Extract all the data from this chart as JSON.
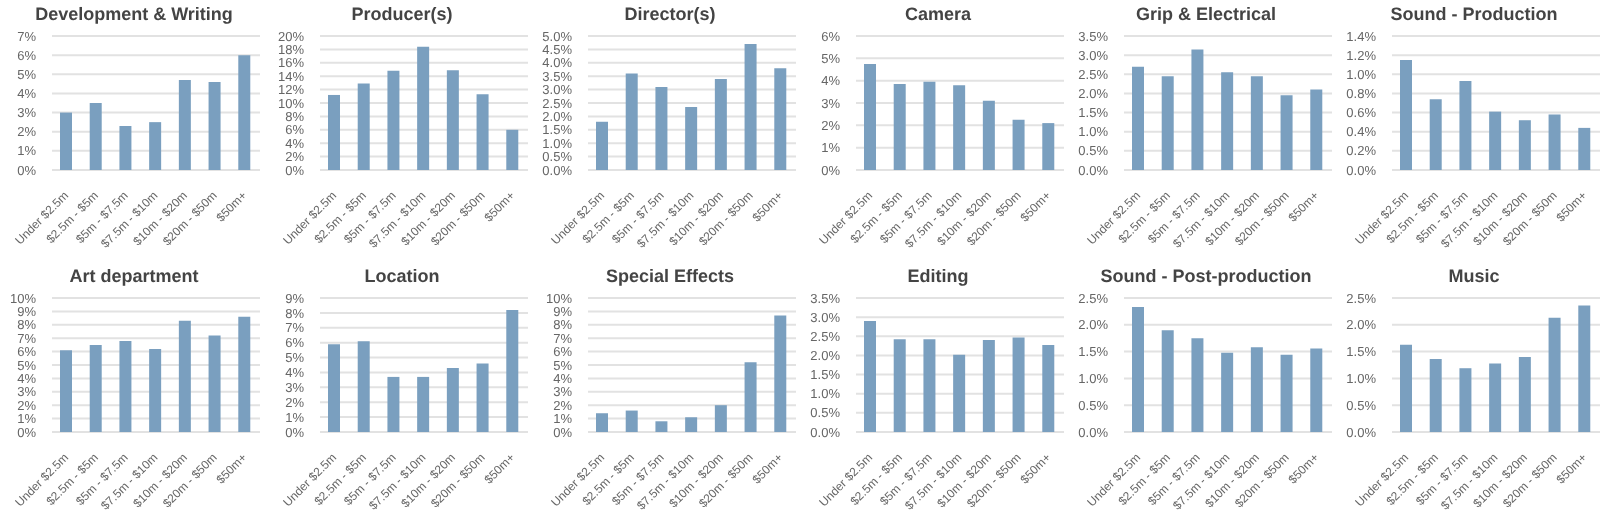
{
  "chart_data": [
    {
      "type": "bar",
      "title": "Development & Writing",
      "categories": [
        "Under $2.5m",
        "$2.5m - $5m",
        "$5m - $7.5m",
        "$7.5m - $10m",
        "$10m - $20m",
        "$20m - $50m",
        "$50m+"
      ],
      "values": [
        3.0,
        3.5,
        2.3,
        2.5,
        4.7,
        4.6,
        6.0
      ],
      "color": "#7a9fbf",
      "ylim": [
        0,
        7
      ],
      "yticks": [
        {
          "value": 0,
          "label": "0%"
        },
        {
          "value": 1,
          "label": "1%"
        },
        {
          "value": 2,
          "label": "2%"
        },
        {
          "value": 3,
          "label": "3%"
        },
        {
          "value": 4,
          "label": "4%"
        },
        {
          "value": 5,
          "label": "5%"
        },
        {
          "value": 6,
          "label": "6%"
        },
        {
          "value": 7,
          "label": "7%"
        }
      ],
      "grid": "y"
    },
    {
      "type": "bar",
      "title": "Producer(s)",
      "categories": [
        "Under $2.5m",
        "$2.5m - $5m",
        "$5m - $7.5m",
        "$7.5m - $10m",
        "$10m - $20m",
        "$20m - $50m",
        "$50m+"
      ],
      "values": [
        11.2,
        12.9,
        14.8,
        18.4,
        14.9,
        11.3,
        6.0
      ],
      "color": "#7a9fbf",
      "ylim": [
        0,
        20
      ],
      "yticks": [
        {
          "value": 0,
          "label": "0%"
        },
        {
          "value": 2,
          "label": "2%"
        },
        {
          "value": 4,
          "label": "4%"
        },
        {
          "value": 6,
          "label": "6%"
        },
        {
          "value": 8,
          "label": "8%"
        },
        {
          "value": 10,
          "label": "10%"
        },
        {
          "value": 12,
          "label": "12%"
        },
        {
          "value": 14,
          "label": "14%"
        },
        {
          "value": 16,
          "label": "16%"
        },
        {
          "value": 18,
          "label": "18%"
        },
        {
          "value": 20,
          "label": "20%"
        }
      ],
      "grid": "y"
    },
    {
      "type": "bar",
      "title": "Director(s)",
      "categories": [
        "Under $2.5m",
        "$2.5m - $5m",
        "$5m - $7.5m",
        "$7.5m - $10m",
        "$10m - $20m",
        "$20m - $50m",
        "$50m+"
      ],
      "values": [
        1.8,
        3.6,
        3.1,
        2.35,
        3.4,
        4.7,
        3.8
      ],
      "color": "#7a9fbf",
      "ylim": [
        0,
        5
      ],
      "yticks": [
        {
          "value": 0,
          "label": "0.0%"
        },
        {
          "value": 0.5,
          "label": "0.5%"
        },
        {
          "value": 1,
          "label": "1.0%"
        },
        {
          "value": 1.5,
          "label": "1.5%"
        },
        {
          "value": 2,
          "label": "2.0%"
        },
        {
          "value": 2.5,
          "label": "2.5%"
        },
        {
          "value": 3,
          "label": "3.0%"
        },
        {
          "value": 3.5,
          "label": "3.5%"
        },
        {
          "value": 4,
          "label": "4.0%"
        },
        {
          "value": 4.5,
          "label": "4.5%"
        },
        {
          "value": 5,
          "label": "5.0%"
        }
      ],
      "grid": "y"
    },
    {
      "type": "bar",
      "title": "Camera",
      "categories": [
        "Under $2.5m",
        "$2.5m - $5m",
        "$5m - $7.5m",
        "$7.5m - $10m",
        "$10m - $20m",
        "$20m - $50m",
        "$50m+"
      ],
      "values": [
        4.75,
        3.85,
        3.95,
        3.8,
        3.1,
        2.25,
        2.1
      ],
      "color": "#7a9fbf",
      "ylim": [
        0,
        6
      ],
      "yticks": [
        {
          "value": 0,
          "label": "0%"
        },
        {
          "value": 1,
          "label": "1%"
        },
        {
          "value": 2,
          "label": "2%"
        },
        {
          "value": 3,
          "label": "3%"
        },
        {
          "value": 4,
          "label": "4%"
        },
        {
          "value": 5,
          "label": "5%"
        },
        {
          "value": 6,
          "label": "6%"
        }
      ],
      "grid": "y"
    },
    {
      "type": "bar",
      "title": "Grip & Electrical",
      "categories": [
        "Under $2.5m",
        "$2.5m - $5m",
        "$5m - $7.5m",
        "$7.5m - $10m",
        "$10m - $20m",
        "$20m - $50m",
        "$50m+"
      ],
      "values": [
        2.7,
        2.45,
        3.15,
        2.55,
        2.45,
        1.95,
        2.1
      ],
      "color": "#7a9fbf",
      "ylim": [
        0,
        3.5
      ],
      "yticks": [
        {
          "value": 0,
          "label": "0.0%"
        },
        {
          "value": 0.5,
          "label": "0.5%"
        },
        {
          "value": 1,
          "label": "1.0%"
        },
        {
          "value": 1.5,
          "label": "1.5%"
        },
        {
          "value": 2,
          "label": "2.0%"
        },
        {
          "value": 2.5,
          "label": "2.5%"
        },
        {
          "value": 3,
          "label": "3.0%"
        },
        {
          "value": 3.5,
          "label": "3.5%"
        }
      ],
      "grid": "y"
    },
    {
      "type": "bar",
      "title": "Sound - Production",
      "categories": [
        "Under $2.5m",
        "$2.5m - $5m",
        "$5m - $7.5m",
        "$7.5m - $10m",
        "$10m - $20m",
        "$20m - $50m",
        "$50m+"
      ],
      "values": [
        1.15,
        0.74,
        0.93,
        0.61,
        0.52,
        0.58,
        0.44
      ],
      "color": "#7a9fbf",
      "ylim": [
        0,
        1.4
      ],
      "yticks": [
        {
          "value": 0,
          "label": "0.0%"
        },
        {
          "value": 0.2,
          "label": "0.2%"
        },
        {
          "value": 0.4,
          "label": "0.4%"
        },
        {
          "value": 0.6,
          "label": "0.6%"
        },
        {
          "value": 0.8,
          "label": "0.8%"
        },
        {
          "value": 1,
          "label": "1.0%"
        },
        {
          "value": 1.2,
          "label": "1.2%"
        },
        {
          "value": 1.4,
          "label": "1.4%"
        }
      ],
      "grid": "y"
    },
    {
      "type": "bar",
      "title": "Art department",
      "categories": [
        "Under $2.5m",
        "$2.5m - $5m",
        "$5m - $7.5m",
        "$7.5m - $10m",
        "$10m - $20m",
        "$20m - $50m",
        "$50m+"
      ],
      "values": [
        6.1,
        6.5,
        6.8,
        6.2,
        8.3,
        7.2,
        8.6
      ],
      "color": "#7a9fbf",
      "ylim": [
        0,
        10
      ],
      "yticks": [
        {
          "value": 0,
          "label": "0%"
        },
        {
          "value": 1,
          "label": "1%"
        },
        {
          "value": 2,
          "label": "2%"
        },
        {
          "value": 3,
          "label": "3%"
        },
        {
          "value": 4,
          "label": "4%"
        },
        {
          "value": 5,
          "label": "5%"
        },
        {
          "value": 6,
          "label": "6%"
        },
        {
          "value": 7,
          "label": "7%"
        },
        {
          "value": 8,
          "label": "8%"
        },
        {
          "value": 9,
          "label": "9%"
        },
        {
          "value": 10,
          "label": "10%"
        }
      ],
      "grid": "y"
    },
    {
      "type": "bar",
      "title": "Location",
      "categories": [
        "Under $2.5m",
        "$2.5m - $5m",
        "$5m - $7.5m",
        "$7.5m - $10m",
        "$10m - $20m",
        "$20m - $50m",
        "$50m+"
      ],
      "values": [
        5.9,
        6.1,
        3.7,
        3.7,
        4.3,
        4.6,
        8.2
      ],
      "color": "#7a9fbf",
      "ylim": [
        0,
        9
      ],
      "yticks": [
        {
          "value": 0,
          "label": "0%"
        },
        {
          "value": 1,
          "label": "1%"
        },
        {
          "value": 2,
          "label": "2%"
        },
        {
          "value": 3,
          "label": "3%"
        },
        {
          "value": 4,
          "label": "4%"
        },
        {
          "value": 5,
          "label": "5%"
        },
        {
          "value": 6,
          "label": "6%"
        },
        {
          "value": 7,
          "label": "7%"
        },
        {
          "value": 8,
          "label": "8%"
        },
        {
          "value": 9,
          "label": "9%"
        }
      ],
      "grid": "y"
    },
    {
      "type": "bar",
      "title": "Special Effects",
      "categories": [
        "Under $2.5m",
        "$2.5m - $5m",
        "$5m - $7.5m",
        "$7.5m - $10m",
        "$10m - $20m",
        "$20m - $50m",
        "$50m+"
      ],
      "values": [
        1.4,
        1.6,
        0.8,
        1.1,
        2.0,
        5.2,
        8.7
      ],
      "color": "#7a9fbf",
      "ylim": [
        0,
        10
      ],
      "yticks": [
        {
          "value": 0,
          "label": "0%"
        },
        {
          "value": 1,
          "label": "1%"
        },
        {
          "value": 2,
          "label": "2%"
        },
        {
          "value": 3,
          "label": "3%"
        },
        {
          "value": 4,
          "label": "4%"
        },
        {
          "value": 5,
          "label": "5%"
        },
        {
          "value": 6,
          "label": "6%"
        },
        {
          "value": 7,
          "label": "7%"
        },
        {
          "value": 8,
          "label": "8%"
        },
        {
          "value": 9,
          "label": "9%"
        },
        {
          "value": 10,
          "label": "10%"
        }
      ],
      "grid": "y"
    },
    {
      "type": "bar",
      "title": "Editing",
      "categories": [
        "Under $2.5m",
        "$2.5m - $5m",
        "$5m - $7.5m",
        "$7.5m - $10m",
        "$10m - $20m",
        "$20m - $50m",
        "$50m+"
      ],
      "values": [
        2.9,
        2.42,
        2.42,
        2.02,
        2.4,
        2.47,
        2.27
      ],
      "color": "#7a9fbf",
      "ylim": [
        0,
        3.5
      ],
      "yticks": [
        {
          "value": 0,
          "label": "0.0%"
        },
        {
          "value": 0.5,
          "label": "0.5%"
        },
        {
          "value": 1,
          "label": "1.0%"
        },
        {
          "value": 1.5,
          "label": "1.5%"
        },
        {
          "value": 2,
          "label": "2.0%"
        },
        {
          "value": 2.5,
          "label": "2.5%"
        },
        {
          "value": 3,
          "label": "3.0%"
        },
        {
          "value": 3.5,
          "label": "3.5%"
        }
      ],
      "grid": "y"
    },
    {
      "type": "bar",
      "title": "Sound - Post-production",
      "categories": [
        "Under $2.5m",
        "$2.5m - $5m",
        "$5m - $7.5m",
        "$7.5m - $10m",
        "$10m - $20m",
        "$20m - $50m",
        "$50m+"
      ],
      "values": [
        2.33,
        1.9,
        1.75,
        1.48,
        1.58,
        1.44,
        1.56
      ],
      "color": "#7a9fbf",
      "ylim": [
        0,
        2.5
      ],
      "yticks": [
        {
          "value": 0,
          "label": "0.0%"
        },
        {
          "value": 0.5,
          "label": "0.5%"
        },
        {
          "value": 1,
          "label": "1.0%"
        },
        {
          "value": 1.5,
          "label": "1.5%"
        },
        {
          "value": 2,
          "label": "2.0%"
        },
        {
          "value": 2.5,
          "label": "2.5%"
        }
      ],
      "grid": "y"
    },
    {
      "type": "bar",
      "title": "Music",
      "categories": [
        "Under $2.5m",
        "$2.5m - $5m",
        "$5m - $7.5m",
        "$7.5m - $10m",
        "$10m - $20m",
        "$20m - $50m",
        "$50m+"
      ],
      "values": [
        1.63,
        1.36,
        1.19,
        1.28,
        1.4,
        2.13,
        2.36
      ],
      "color": "#7a9fbf",
      "ylim": [
        0,
        2.5
      ],
      "yticks": [
        {
          "value": 0,
          "label": "0.0%"
        },
        {
          "value": 0.5,
          "label": "0.5%"
        },
        {
          "value": 1,
          "label": "1.0%"
        },
        {
          "value": 1.5,
          "label": "1.5%"
        },
        {
          "value": 2,
          "label": "2.0%"
        },
        {
          "value": 2.5,
          "label": "2.5%"
        }
      ],
      "grid": "y"
    }
  ]
}
